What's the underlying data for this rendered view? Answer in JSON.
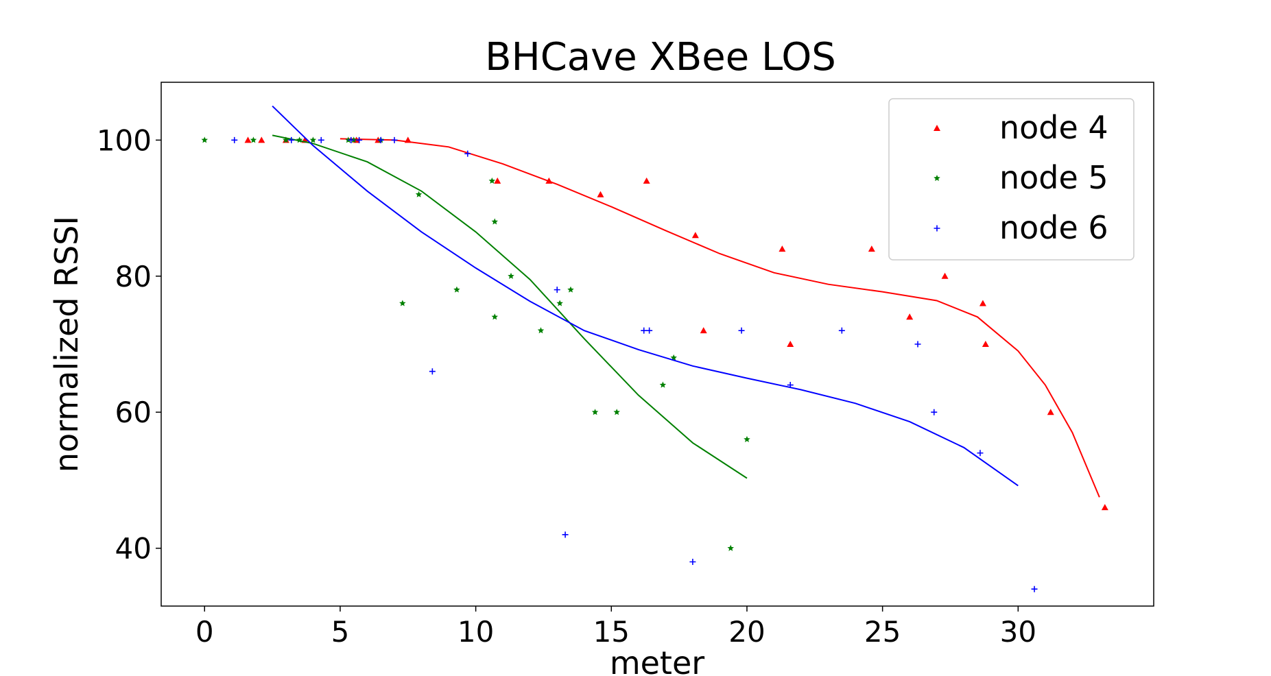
{
  "chart_data": {
    "type": "scatter",
    "title": "BHCave XBee LOS",
    "xlabel": "meter",
    "ylabel": "normalized RSSI",
    "xlim": [
      -1.6,
      35.0
    ],
    "ylim": [
      31.5,
      108.5
    ],
    "x_ticks": [
      0,
      5,
      10,
      15,
      20,
      25,
      30
    ],
    "y_ticks": [
      40,
      60,
      80,
      100
    ],
    "grid": false,
    "legend_position": "top-right",
    "series": [
      {
        "name": "node 4",
        "color": "#ff0000",
        "marker": "triangle",
        "points": [
          [
            1.6,
            100
          ],
          [
            2.1,
            100
          ],
          [
            3.0,
            100
          ],
          [
            3.7,
            100
          ],
          [
            5.6,
            100
          ],
          [
            6.4,
            100
          ],
          [
            7.5,
            100
          ],
          [
            10.8,
            94
          ],
          [
            12.7,
            94
          ],
          [
            14.6,
            92
          ],
          [
            16.3,
            94
          ],
          [
            18.1,
            86
          ],
          [
            18.4,
            72
          ],
          [
            21.3,
            84
          ],
          [
            21.6,
            70
          ],
          [
            24.6,
            84
          ],
          [
            26.0,
            74
          ],
          [
            27.3,
            80
          ],
          [
            28.7,
            76
          ],
          [
            28.8,
            70
          ],
          [
            31.2,
            60
          ],
          [
            33.2,
            46
          ]
        ],
        "fit": [
          [
            5.0,
            100.2
          ],
          [
            7.0,
            100.0
          ],
          [
            9.0,
            99.0
          ],
          [
            11.0,
            96.5
          ],
          [
            13.0,
            93.5
          ],
          [
            15.0,
            90.2
          ],
          [
            17.0,
            86.7
          ],
          [
            19.0,
            83.3
          ],
          [
            21.0,
            80.5
          ],
          [
            23.0,
            78.8
          ],
          [
            25.0,
            77.7
          ],
          [
            27.0,
            76.4
          ],
          [
            28.5,
            74.0
          ],
          [
            30.0,
            69.0
          ],
          [
            31.0,
            64.0
          ],
          [
            32.0,
            57.0
          ],
          [
            33.0,
            47.5
          ]
        ]
      },
      {
        "name": "node 5",
        "color": "#008000",
        "marker": "star",
        "points": [
          [
            0.0,
            100
          ],
          [
            1.8,
            100
          ],
          [
            3.0,
            100
          ],
          [
            3.5,
            100
          ],
          [
            4.0,
            100
          ],
          [
            5.3,
            100
          ],
          [
            5.5,
            100
          ],
          [
            6.5,
            100
          ],
          [
            7.3,
            76
          ],
          [
            7.9,
            92
          ],
          [
            9.3,
            78
          ],
          [
            10.6,
            94
          ],
          [
            10.7,
            88
          ],
          [
            10.7,
            74
          ],
          [
            11.3,
            80
          ],
          [
            12.4,
            72
          ],
          [
            13.1,
            76
          ],
          [
            13.5,
            78
          ],
          [
            14.4,
            60
          ],
          [
            15.2,
            60
          ],
          [
            16.9,
            64
          ],
          [
            17.3,
            68
          ],
          [
            19.4,
            40
          ],
          [
            20.0,
            56
          ]
        ],
        "fit": [
          [
            2.5,
            100.7
          ],
          [
            4.0,
            99.5
          ],
          [
            6.0,
            96.8
          ],
          [
            8.0,
            92.5
          ],
          [
            10.0,
            86.5
          ],
          [
            12.0,
            79.5
          ],
          [
            14.0,
            70.8
          ],
          [
            16.0,
            62.5
          ],
          [
            18.0,
            55.5
          ],
          [
            20.0,
            50.3
          ]
        ]
      },
      {
        "name": "node 6",
        "color": "#0000ff",
        "marker": "plus",
        "points": [
          [
            1.1,
            100
          ],
          [
            3.2,
            100
          ],
          [
            4.3,
            100
          ],
          [
            5.4,
            100
          ],
          [
            5.7,
            100
          ],
          [
            6.5,
            100
          ],
          [
            7.0,
            100
          ],
          [
            8.4,
            66
          ],
          [
            9.7,
            98
          ],
          [
            13.0,
            78
          ],
          [
            13.3,
            42
          ],
          [
            16.2,
            72
          ],
          [
            16.4,
            72
          ],
          [
            18.0,
            38
          ],
          [
            19.8,
            72
          ],
          [
            21.6,
            64
          ],
          [
            23.5,
            72
          ],
          [
            26.3,
            70
          ],
          [
            26.9,
            60
          ],
          [
            28.6,
            54
          ],
          [
            30.6,
            34
          ]
        ],
        "fit": [
          [
            2.5,
            105.0
          ],
          [
            4.0,
            99.2
          ],
          [
            6.0,
            92.5
          ],
          [
            8.0,
            86.5
          ],
          [
            10.0,
            81.2
          ],
          [
            12.0,
            76.3
          ],
          [
            14.0,
            72.0
          ],
          [
            16.0,
            69.2
          ],
          [
            18.0,
            66.8
          ],
          [
            20.0,
            65.0
          ],
          [
            22.0,
            63.3
          ],
          [
            24.0,
            61.3
          ],
          [
            26.0,
            58.6
          ],
          [
            28.0,
            54.8
          ],
          [
            30.0,
            49.2
          ]
        ]
      }
    ]
  }
}
